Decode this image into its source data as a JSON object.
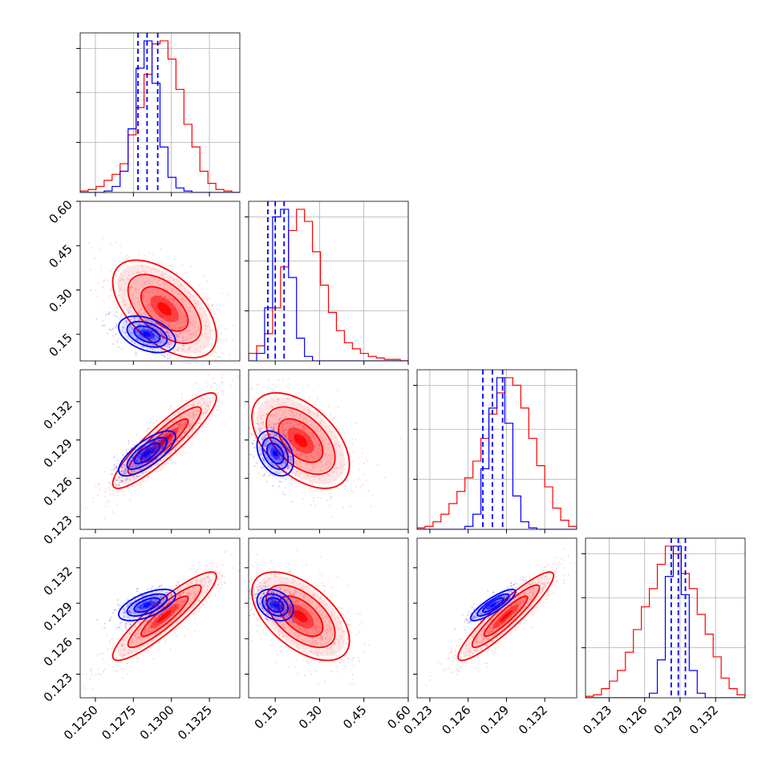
{
  "chart_data": {
    "type": "corner",
    "title": "",
    "series_colors": {
      "red": "#ff0000",
      "blue": "#0000ff"
    },
    "grid": true,
    "parameters": [
      {
        "name": "",
        "range": [
          0.124,
          0.1345
        ],
        "ticks": [
          0.125,
          0.1275,
          0.13,
          0.1325
        ],
        "tick_labels": [
          "0.1250",
          "0.1275",
          "0.1300",
          "0.1325"
        ]
      },
      {
        "name": "",
        "range": [
          0.06,
          0.6
        ],
        "ticks": [
          0.15,
          0.3,
          0.45,
          0.6
        ],
        "tick_labels": [
          "0.15",
          "0.30",
          "0.45",
          "0.60"
        ]
      },
      {
        "name": "",
        "range": [
          0.122,
          0.1345
        ],
        "ticks": [
          0.123,
          0.126,
          0.129,
          0.132
        ],
        "tick_labels": [
          "0.123",
          "0.126",
          "0.129",
          "0.132"
        ]
      },
      {
        "name": "",
        "range": [
          0.121,
          0.1345
        ],
        "ticks": [
          0.123,
          0.126,
          0.129,
          0.132
        ],
        "tick_labels": [
          "0.123",
          "0.126",
          "0.129",
          "0.132"
        ]
      }
    ],
    "series": [
      {
        "name": "",
        "color": "#ff0000",
        "quantiles_drawn": false,
        "mean": [
          0.12955,
          0.236,
          0.12895,
          0.1279
        ],
        "std": [
          0.00155,
          0.075,
          0.0017,
          0.0017
        ],
        "correlation": [
          [
            1.0,
            -0.55,
            0.9,
            0.9
          ],
          [
            -0.55,
            1.0,
            -0.5,
            -0.55
          ],
          [
            0.9,
            -0.5,
            1.0,
            0.92
          ],
          [
            0.9,
            -0.55,
            0.92,
            1.0
          ]
        ],
        "histograms": [
          [
            0.01,
            0.02,
            0.04,
            0.08,
            0.12,
            0.19,
            0.38,
            0.56,
            0.78,
            0.98,
            1.0,
            0.88,
            0.68,
            0.45,
            0.3,
            0.14,
            0.06,
            0.02,
            0.01,
            0.0
          ],
          [
            0.05,
            0.1,
            0.18,
            0.35,
            0.62,
            0.86,
            1.0,
            0.92,
            0.72,
            0.5,
            0.32,
            0.2,
            0.12,
            0.08,
            0.05,
            0.03,
            0.02,
            0.01,
            0.01,
            0.0
          ],
          [
            0.01,
            0.02,
            0.05,
            0.1,
            0.17,
            0.25,
            0.34,
            0.45,
            0.6,
            0.76,
            0.9,
            1.0,
            0.95,
            0.8,
            0.6,
            0.42,
            0.28,
            0.14,
            0.06,
            0.02
          ],
          [
            0.01,
            0.02,
            0.06,
            0.11,
            0.18,
            0.3,
            0.45,
            0.6,
            0.72,
            0.88,
            1.0,
            0.95,
            0.82,
            0.72,
            0.55,
            0.42,
            0.27,
            0.13,
            0.06,
            0.02
          ]
        ]
      },
      {
        "name": "",
        "color": "#0000ff",
        "quantiles_drawn": true,
        "mean": [
          0.1284,
          0.15,
          0.12795,
          0.12885
        ],
        "std": [
          0.00085,
          0.028,
          0.0008,
          0.0006
        ],
        "correlation": [
          [
            1.0,
            -0.4,
            0.75,
            0.6
          ],
          [
            -0.4,
            1.0,
            -0.35,
            -0.3
          ],
          [
            0.75,
            -0.35,
            1.0,
            0.85
          ],
          [
            0.6,
            -0.3,
            0.85,
            1.0
          ]
        ],
        "quantiles": [
          [
            0.1278,
            0.1284,
            0.1291
          ],
          [
            0.125,
            0.15,
            0.18
          ],
          [
            0.12715,
            0.1279,
            0.1287
          ],
          [
            0.12825,
            0.12885,
            0.12945
          ]
        ],
        "histograms": [
          [
            0.0,
            0.0,
            0.0,
            0.01,
            0.04,
            0.14,
            0.42,
            0.82,
            1.0,
            0.72,
            0.3,
            0.1,
            0.03,
            0.01,
            0.0,
            0.0,
            0.0,
            0.0,
            0.0,
            0.0
          ],
          [
            0.0,
            0.05,
            0.35,
            0.95,
            1.0,
            0.55,
            0.15,
            0.03,
            0.0,
            0.0,
            0.0,
            0.0,
            0.0,
            0.0,
            0.0,
            0.0,
            0.0,
            0.0,
            0.0,
            0.0
          ],
          [
            0.0,
            0.0,
            0.0,
            0.0,
            0.0,
            0.0,
            0.02,
            0.1,
            0.4,
            0.8,
            1.0,
            0.7,
            0.22,
            0.05,
            0.01,
            0.0,
            0.0,
            0.0,
            0.0,
            0.0
          ],
          [
            0.0,
            0.0,
            0.0,
            0.0,
            0.0,
            0.0,
            0.0,
            0.0,
            0.03,
            0.25,
            0.8,
            1.0,
            0.68,
            0.18,
            0.03,
            0.0,
            0.0,
            0.0,
            0.0,
            0.0
          ]
        ]
      }
    ]
  }
}
